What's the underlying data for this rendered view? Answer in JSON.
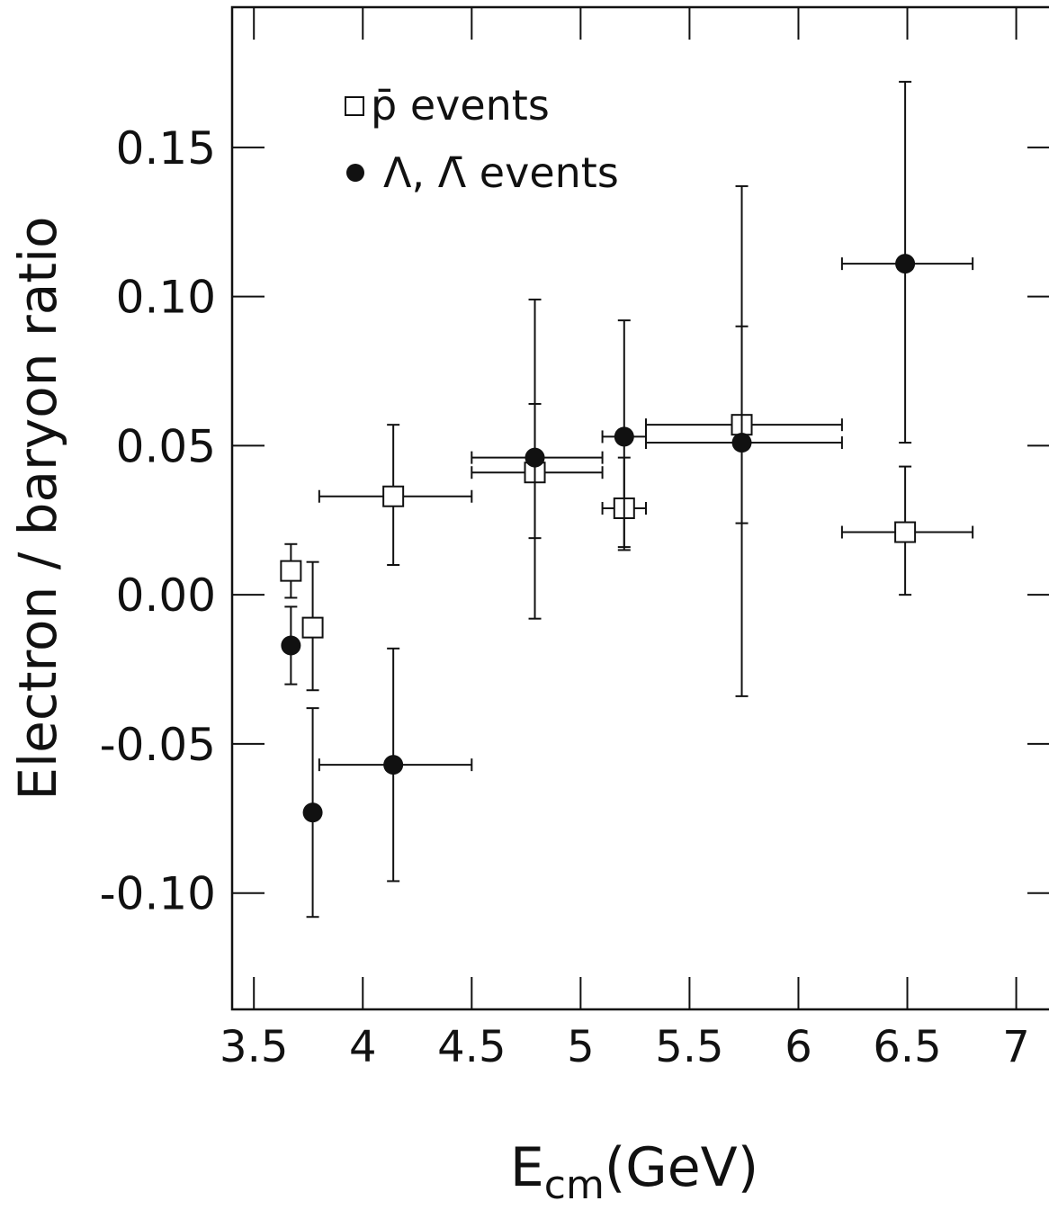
{
  "chart_data": {
    "type": "scatter",
    "xlabel_main": "E",
    "xlabel_sub": "cm",
    "xlabel_unit": "(GeV)",
    "ylabel": "Electron / baryon ratio",
    "xlim": [
      3.4,
      7.2
    ],
    "ylim": [
      -0.139,
      0.197
    ],
    "x_ticks": [
      3.5,
      4,
      4.5,
      5,
      5.5,
      6,
      6.5,
      7
    ],
    "x_tick_labels": [
      "3.5",
      "4",
      "4.5",
      "5",
      "5.5",
      "6",
      "6.5",
      "7"
    ],
    "y_ticks": [
      -0.1,
      -0.05,
      0.0,
      0.05,
      0.1,
      0.15
    ],
    "y_tick_labels": [
      "-0.10",
      "-0.05",
      "0.00",
      "0.05",
      "0.10",
      "0.15"
    ],
    "grid": false,
    "legend_position": "top-left",
    "legend": [
      {
        "label_symbol": "p̄",
        "label_text": " events",
        "marker": "open-square"
      },
      {
        "label_symbol": "Λ, Λ̄",
        "label_text": " events",
        "marker": "filled-circle"
      }
    ],
    "series": [
      {
        "name": "p̄ events",
        "marker": "open-square",
        "points": [
          {
            "x": 3.67,
            "y": 0.008,
            "xerr": [
              0,
              0
            ],
            "yerr": [
              0.009,
              0.009
            ]
          },
          {
            "x": 3.77,
            "y": -0.011,
            "xerr": [
              0,
              0
            ],
            "yerr": [
              0.021,
              0.022
            ]
          },
          {
            "x": 4.14,
            "y": 0.033,
            "xerr": [
              0.34,
              0.36
            ],
            "yerr": [
              0.023,
              0.024
            ]
          },
          {
            "x": 4.79,
            "y": 0.041,
            "xerr": [
              0.29,
              0.31
            ],
            "yerr": [
              0.022,
              0.023
            ]
          },
          {
            "x": 5.2,
            "y": 0.029,
            "xerr": [
              0.1,
              0.1
            ],
            "yerr": [
              0.013,
              0.017
            ]
          },
          {
            "x": 5.74,
            "y": 0.057,
            "xerr": [
              0.44,
              0.46
            ],
            "yerr": [
              0.033,
              0.033
            ]
          },
          {
            "x": 6.49,
            "y": 0.021,
            "xerr": [
              0.29,
              0.31
            ],
            "yerr": [
              0.021,
              0.022
            ]
          }
        ]
      },
      {
        "name": "Λ, Λ̄ events",
        "marker": "filled-circle",
        "points": [
          {
            "x": 3.67,
            "y": -0.017,
            "xerr": [
              0,
              0
            ],
            "yerr": [
              0.013,
              0.013
            ]
          },
          {
            "x": 3.77,
            "y": -0.073,
            "xerr": [
              0,
              0
            ],
            "yerr": [
              0.035,
              0.035
            ]
          },
          {
            "x": 4.14,
            "y": -0.057,
            "xerr": [
              0.34,
              0.36
            ],
            "yerr": [
              0.039,
              0.039
            ]
          },
          {
            "x": 4.79,
            "y": 0.046,
            "xerr": [
              0.29,
              0.31
            ],
            "yerr": [
              0.054,
              0.053
            ]
          },
          {
            "x": 5.2,
            "y": 0.053,
            "xerr": [
              0.1,
              0.1
            ],
            "yerr": [
              0.038,
              0.039
            ]
          },
          {
            "x": 5.74,
            "y": 0.051,
            "xerr": [
              0.44,
              0.46
            ],
            "yerr": [
              0.085,
              0.086
            ]
          },
          {
            "x": 6.49,
            "y": 0.111,
            "xerr": [
              0.29,
              0.31
            ],
            "yerr": [
              0.06,
              0.061
            ]
          }
        ]
      }
    ]
  }
}
